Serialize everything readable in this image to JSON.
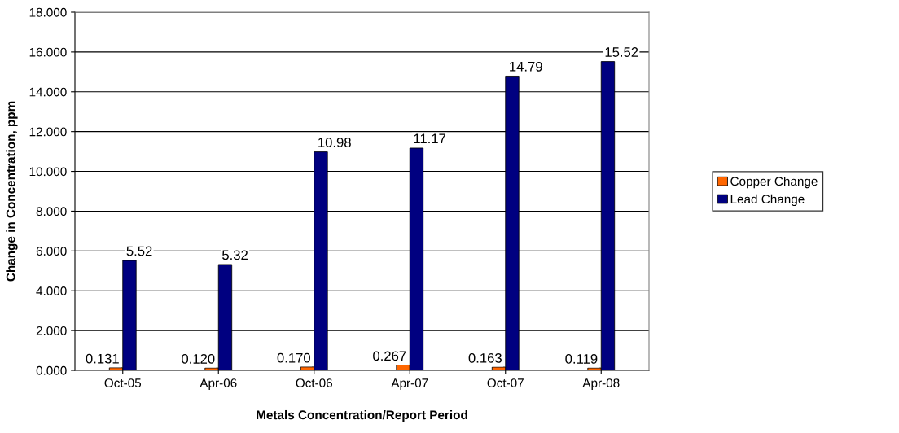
{
  "chart_data": {
    "type": "bar",
    "xlabel": "Metals Concentration/Report Period",
    "ylabel": "Change in Concentration, ppm",
    "categories": [
      "Oct-05",
      "Apr-06",
      "Oct-06",
      "Apr-07",
      "Oct-07",
      "Apr-08"
    ],
    "series": [
      {
        "name": "Copper Change",
        "color": "#ff6600",
        "values": [
          0.131,
          0.12,
          0.17,
          0.267,
          0.163,
          0.119
        ],
        "value_labels": [
          "0.131",
          "0.120",
          "0.170",
          "0.267",
          "0.163",
          "0.119"
        ]
      },
      {
        "name": "Lead Change",
        "color": "#000080",
        "values": [
          5.52,
          5.32,
          10.98,
          11.17,
          14.79,
          15.52
        ],
        "value_labels": [
          "5.52",
          "5.32",
          "10.98",
          "11.17",
          "14.79",
          "15.52"
        ]
      }
    ],
    "ylim": [
      0,
      18
    ],
    "yticks": [
      {
        "value": 0,
        "label": "0.000"
      },
      {
        "value": 2,
        "label": "2.000"
      },
      {
        "value": 4,
        "label": "4.000"
      },
      {
        "value": 6,
        "label": "6.000"
      },
      {
        "value": 8,
        "label": "8.000"
      },
      {
        "value": 10,
        "label": "10.000"
      },
      {
        "value": 12,
        "label": "12.000"
      },
      {
        "value": 14,
        "label": "14.000"
      },
      {
        "value": 16,
        "label": "16.000"
      },
      {
        "value": 18,
        "label": "18.000"
      }
    ],
    "grid": "y",
    "legend": "right"
  }
}
